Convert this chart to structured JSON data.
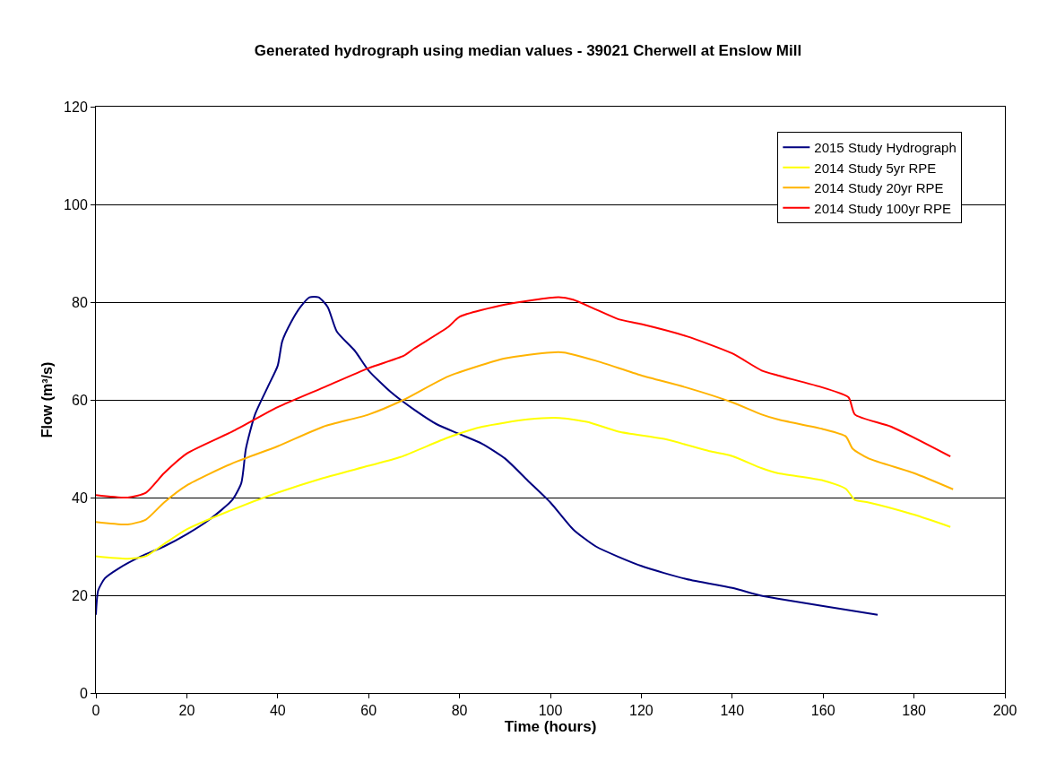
{
  "chart_data": {
    "type": "line",
    "title": "Generated hydrograph using median values - 39021 Cherwell at Enslow Mill",
    "xlabel": "Time (hours)",
    "ylabel": "Flow (m³/s)",
    "xlim": [
      0,
      200
    ],
    "xticks": [
      0,
      20,
      40,
      60,
      80,
      100,
      120,
      140,
      160,
      180,
      200
    ],
    "ylim": [
      0,
      120
    ],
    "yticks": [
      0,
      20,
      40,
      60,
      80,
      100,
      120
    ],
    "grid": "y",
    "legend": "top right",
    "marker": "none",
    "line_style": "solid",
    "series": [
      {
        "name": "2015 Study Hydrograph",
        "color": "#000080",
        "x": [
          0,
          0.5,
          2,
          5,
          10,
          15,
          20,
          25,
          30,
          32,
          33,
          35,
          38,
          40,
          41,
          43,
          45,
          47,
          49,
          51,
          53,
          57,
          60,
          65,
          70,
          75,
          80,
          85,
          90,
          95,
          100,
          105,
          110,
          120,
          130,
          140,
          146,
          150,
          160,
          172
        ],
        "values": [
          16,
          21,
          23.5,
          25.5,
          28,
          30,
          32.5,
          35.5,
          39.5,
          43,
          50,
          57,
          63,
          67,
          72,
          76,
          79,
          81,
          81,
          79,
          74,
          70,
          66,
          61.5,
          58,
          55,
          53,
          51,
          48,
          43.5,
          39,
          33.5,
          30,
          26,
          23.3,
          21.5,
          20,
          19.3,
          17.8,
          16
        ]
      },
      {
        "name": "2014 Study 5yr RPE",
        "color": "#ffff00",
        "x": [
          0,
          7,
          11,
          15,
          20,
          30,
          40,
          50,
          60,
          67,
          77.5,
          85,
          95,
          102,
          108,
          115,
          125,
          135,
          140,
          146.5,
          150,
          160,
          165,
          167,
          170,
          180,
          188
        ],
        "values": [
          28,
          27.5,
          28,
          30.5,
          33.5,
          37.5,
          41,
          44,
          46.5,
          48.3,
          52.3,
          54.5,
          56,
          56.3,
          55.5,
          53.5,
          52,
          49.5,
          48.5,
          46,
          45,
          43.5,
          41.8,
          39.5,
          39,
          36.5,
          34
        ]
      },
      {
        "name": "2014 Study 20yr RPE",
        "color": "#ffb300",
        "x": [
          0,
          7,
          11,
          15,
          20,
          30,
          40,
          50,
          60,
          67.7,
          77.5,
          90,
          100,
          103,
          110,
          120,
          130,
          140,
          146.5,
          150,
          160,
          165,
          166.5,
          170,
          180,
          188.6
        ],
        "values": [
          35,
          34.5,
          35.5,
          39,
          42.5,
          47,
          50.5,
          54.5,
          57,
          60,
          64.8,
          68.5,
          69.7,
          69.7,
          68,
          65,
          62.5,
          59.5,
          57,
          56,
          54,
          52.5,
          50,
          48,
          45,
          41.7
        ]
      },
      {
        "name": "2014 Study 100yr RPE",
        "color": "#ff0000",
        "x": [
          0,
          7,
          11,
          15,
          20,
          30,
          40,
          50,
          60,
          67.7,
          70,
          77.5,
          80,
          90,
          101.8,
          105,
          110,
          115,
          120,
          130,
          140,
          146.5,
          150,
          160,
          165.6,
          167,
          175,
          188
        ],
        "values": [
          40.5,
          40,
          41,
          45,
          49,
          53.5,
          58.5,
          62.5,
          66.5,
          69,
          70.5,
          74.9,
          77,
          79.5,
          81,
          80.5,
          78.5,
          76.5,
          75.5,
          73,
          69.5,
          66,
          65,
          62.5,
          60.5,
          57,
          54.5,
          48.4
        ]
      }
    ]
  }
}
